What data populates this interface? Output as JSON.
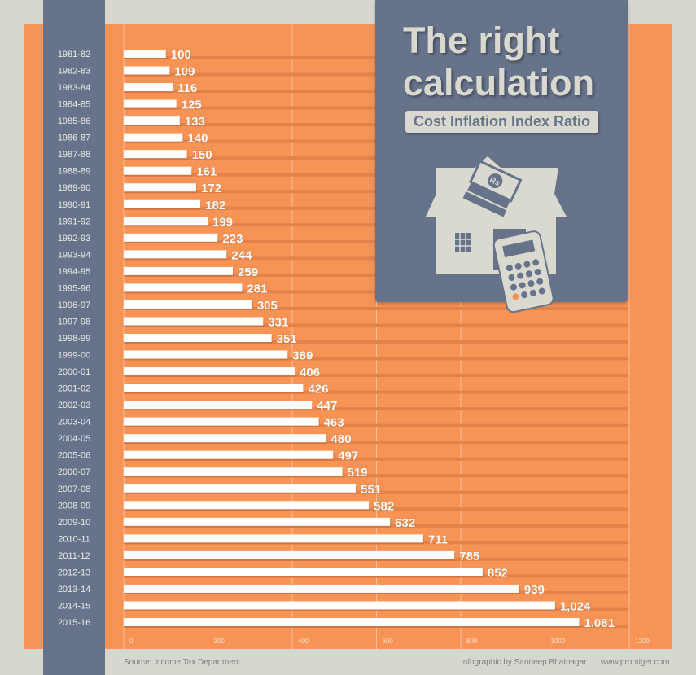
{
  "title_line1": "The right",
  "title_line2": "calculation",
  "subtitle": "Cost Inflation Index Ratio",
  "footer": {
    "source": "Source: Income Tax Department",
    "credit": "Infographic by Sandeep Bhatnagar",
    "website": "www.proptiger.com"
  },
  "colors": {
    "background": "#d6d7cf",
    "panel": "#f79355",
    "slate": "#67738b",
    "bar": "#ffffff",
    "text_light": "#d9d9cf"
  },
  "icon": "house-money-calculator-icon",
  "chart_data": {
    "type": "bar",
    "orientation": "horizontal",
    "title": "Cost Inflation Index Ratio",
    "categories": [
      "1981-82",
      "1982-83",
      "1983-84",
      "1984-85",
      "1985-86",
      "1986-87",
      "1987-88",
      "1988-89",
      "1989-90",
      "1990-91",
      "1991-92",
      "1992-93",
      "1993-94",
      "1994-95",
      "1995-96",
      "1996-97",
      "1997-98",
      "1998-99",
      "1999-00",
      "2000-01",
      "2001-02",
      "2002-03",
      "2003-04",
      "2004-05",
      "2005-06",
      "2006-07",
      "2007-08",
      "2008-09",
      "2009-10",
      "2010-11",
      "2011-12",
      "2012-13",
      "2013-14",
      "2014-15",
      "2015-16"
    ],
    "values": [
      100,
      109,
      116,
      125,
      133,
      140,
      150,
      161,
      172,
      182,
      199,
      223,
      244,
      259,
      281,
      305,
      331,
      351,
      389,
      406,
      426,
      447,
      463,
      480,
      497,
      519,
      551,
      582,
      632,
      711,
      785,
      852,
      939,
      1024,
      1081
    ],
    "value_labels": [
      "100",
      "109",
      "116",
      "125",
      "133",
      "140",
      "150",
      "161",
      "172",
      "182",
      "199",
      "223",
      "244",
      "259",
      "281",
      "305",
      "331",
      "351",
      "389",
      "406",
      "426",
      "447",
      "463",
      "480",
      "497",
      "519",
      "551",
      "582",
      "632",
      "711",
      "785",
      "852",
      "939",
      "1,024",
      "1.081"
    ],
    "xlim": [
      0,
      1200
    ],
    "x_ticks": [
      "0",
      "200",
      "400",
      "600",
      "800",
      "1000",
      "1200"
    ],
    "grid": true
  }
}
